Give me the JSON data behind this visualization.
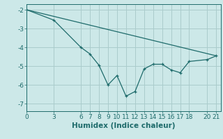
{
  "xlabel": "Humidex (Indice chaleur)",
  "background_color": "#cce8e8",
  "line_color": "#1e6b6b",
  "grid_color": "#aacccc",
  "series1_x": [
    0,
    3,
    6,
    7,
    8,
    9,
    10,
    11,
    12,
    13,
    14,
    15,
    16,
    17,
    18,
    20,
    21
  ],
  "series1_y": [
    -2.0,
    -2.55,
    -4.0,
    -4.35,
    -4.95,
    -6.0,
    -5.5,
    -6.6,
    -6.35,
    -5.15,
    -4.9,
    -4.9,
    -5.2,
    -5.35,
    -4.75,
    -4.65,
    -4.45
  ],
  "series2_x": [
    0,
    21
  ],
  "series2_y": [
    -2.0,
    -4.45
  ],
  "xticks": [
    0,
    3,
    6,
    7,
    8,
    9,
    10,
    11,
    12,
    13,
    14,
    15,
    16,
    17,
    18,
    20,
    21
  ],
  "yticks": [
    -7,
    -6,
    -5,
    -4,
    -3,
    -2
  ],
  "xlim": [
    0,
    21.5
  ],
  "ylim": [
    -7.4,
    -1.7
  ],
  "tick_fontsize": 6.5,
  "label_fontsize": 7.5
}
